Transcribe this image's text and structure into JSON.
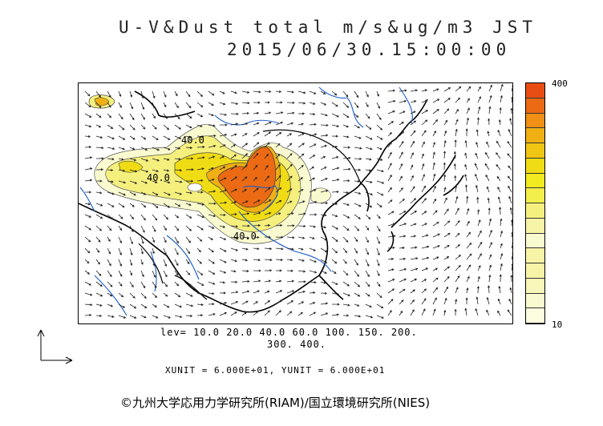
{
  "title": {
    "line1": "U-V&Dust total m/s&ug/m3 JST",
    "line2": "2015/06/30.15:00:00"
  },
  "colorbar": {
    "max_label": "400",
    "min_label": "10",
    "colors": [
      "#fafad0",
      "#f7f4a8",
      "#f5f07e",
      "#f2ee4c",
      "#f0ea1e",
      "#f0dc14",
      "#f0c614",
      "#f0b014",
      "#f09014",
      "#ec6a14",
      "#e84e14"
    ]
  },
  "contour_labels": [
    "40.0",
    "40.0",
    "40.0"
  ],
  "levels": {
    "line1": "lev= 10.0 20.0 40.0 60.0 100. 150. 200.",
    "line2": "300. 400."
  },
  "units": "XUNIT = 6.000E+01, YUNIT = 6.000E+01",
  "copyright": "©九州大学応用力学研究所(RIAM)/国立環境研究所(NIES)"
}
